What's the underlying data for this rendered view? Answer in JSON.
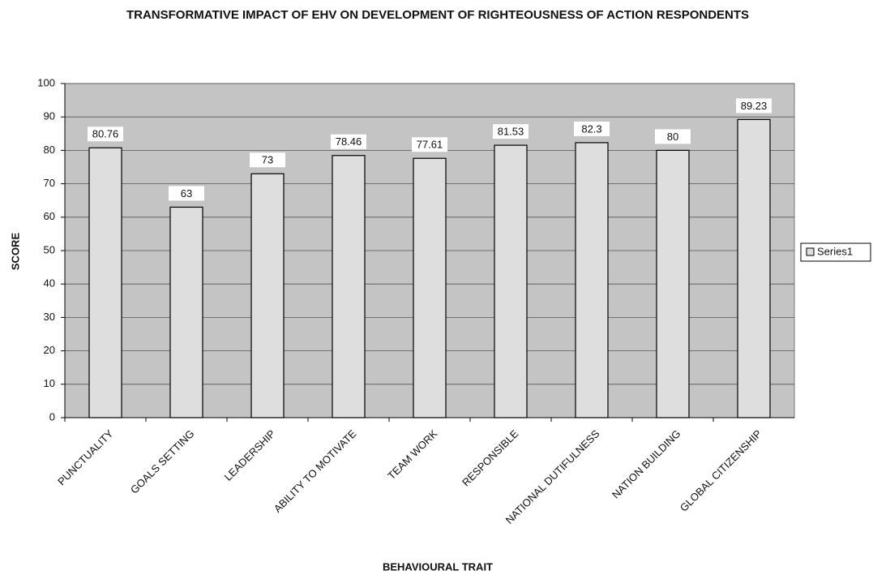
{
  "chart_data": {
    "type": "bar",
    "title": "TRANSFORMATIVE IMPACT OF EHV ON DEVELOPMENT OF RIGHTEOUSNESS OF ACTION RESPONDENTS",
    "x_label": "BEHAVIOURAL TRAIT",
    "y_label": "SCORE",
    "categories": [
      "PUNCTUALITY",
      "GOALS SETTING",
      "LEADERSHIP",
      "ABILITY TO MOTIVATE",
      "TEAM WORK",
      "RESPONSIBLE",
      "NATIONAL DUTIFULNESS",
      "NATION BUILDING",
      "GLOBAL CITIZENSHIP"
    ],
    "series": [
      {
        "name": "Series1",
        "color": "#dedede",
        "values": [
          80.76,
          63,
          73,
          78.46,
          77.61,
          81.53,
          82.3,
          80,
          89.23
        ]
      }
    ],
    "ylim": [
      0,
      100
    ],
    "yticks": [
      0,
      10,
      20,
      30,
      40,
      50,
      60,
      70,
      80,
      90,
      100
    ],
    "grid": true,
    "legend": "right",
    "plot_background": "#c4c4c4"
  }
}
